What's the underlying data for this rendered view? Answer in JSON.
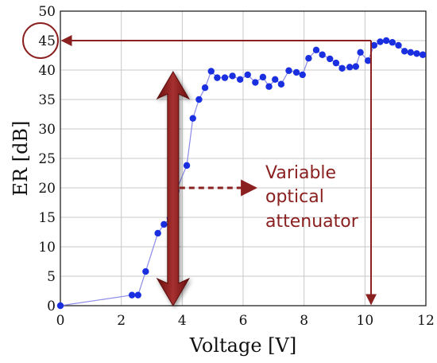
{
  "chart_data": {
    "type": "scatter",
    "xlabel": "Voltage [V]",
    "ylabel": "ER [dB]",
    "xlim": [
      0,
      12
    ],
    "ylim": [
      0,
      50
    ],
    "xticks": [
      "0",
      "2",
      "4",
      "6",
      "8",
      "10",
      "12"
    ],
    "yticks": [
      "0",
      "5",
      "10",
      "15",
      "20",
      "25",
      "30",
      "35",
      "40",
      "45",
      "50"
    ],
    "grid": true,
    "series": [
      {
        "color": "#1a2fe0",
        "line_color": "#8a8ae8",
        "points": [
          [
            0.0,
            0.0
          ],
          [
            2.35,
            1.8
          ],
          [
            2.55,
            1.8
          ],
          [
            2.8,
            5.8
          ],
          [
            3.2,
            12.3
          ],
          [
            3.4,
            13.8
          ],
          [
            3.6,
            14.8
          ],
          [
            3.8,
            19.5
          ],
          [
            4.15,
            23.8
          ],
          [
            4.35,
            31.8
          ],
          [
            4.55,
            35.0
          ],
          [
            4.75,
            37.0
          ],
          [
            4.95,
            39.8
          ],
          [
            5.15,
            38.7
          ],
          [
            5.4,
            38.7
          ],
          [
            5.65,
            39.0
          ],
          [
            5.9,
            38.4
          ],
          [
            6.15,
            39.2
          ],
          [
            6.4,
            37.9
          ],
          [
            6.65,
            38.8
          ],
          [
            6.85,
            37.2
          ],
          [
            7.05,
            38.4
          ],
          [
            7.25,
            37.6
          ],
          [
            7.5,
            39.9
          ],
          [
            7.75,
            39.6
          ],
          [
            7.95,
            39.2
          ],
          [
            8.15,
            42.0
          ],
          [
            8.4,
            43.4
          ],
          [
            8.6,
            42.6
          ],
          [
            8.85,
            41.9
          ],
          [
            9.05,
            41.2
          ],
          [
            9.25,
            40.3
          ],
          [
            9.5,
            40.5
          ],
          [
            9.7,
            40.6
          ],
          [
            9.85,
            43.0
          ],
          [
            10.1,
            41.6
          ],
          [
            10.3,
            44.2
          ],
          [
            10.5,
            44.8
          ],
          [
            10.7,
            45.0
          ],
          [
            10.9,
            44.7
          ],
          [
            11.1,
            44.2
          ],
          [
            11.3,
            43.2
          ],
          [
            11.5,
            43.0
          ],
          [
            11.7,
            42.8
          ],
          [
            11.9,
            42.6
          ]
        ]
      }
    ],
    "annotations": {
      "text_lines": [
        "Variable",
        "optical",
        "attenuator"
      ],
      "color": "#8b2020",
      "max_er_dB": 45,
      "max_voltage_V": 10.2,
      "arrow_x_V": 3.7
    }
  }
}
